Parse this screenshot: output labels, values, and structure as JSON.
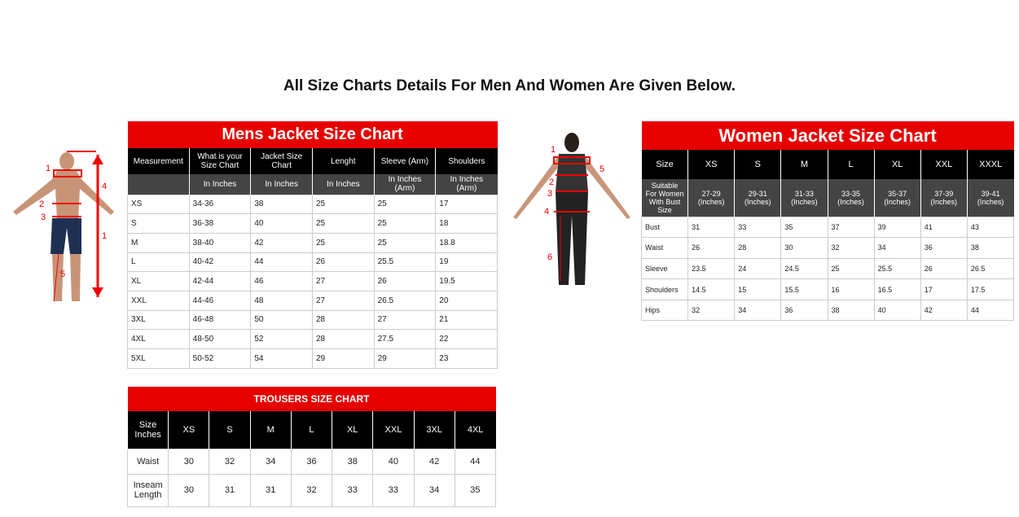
{
  "heading": "All Size Charts Details For Men And Women Are Given Below.",
  "mens_jacket": {
    "title": "Mens Jacket Size Chart",
    "header": [
      "Measurement",
      "What is your Size Chart",
      "Jacket Size Chart",
      "Lenght",
      "Sleeve (Arm)",
      "Shoulders"
    ],
    "units": [
      "In Inches",
      "In Inches",
      "In Inches",
      "In Inches (Arm)",
      "In Inches (Arm)"
    ],
    "rows": [
      [
        "XS",
        "34-36",
        "38",
        "25",
        "25",
        "17"
      ],
      [
        "S",
        "36-38",
        "40",
        "25",
        "25",
        "18"
      ],
      [
        "M",
        "38-40",
        "42",
        "25",
        "25",
        "18.8"
      ],
      [
        "L",
        "40-42",
        "44",
        "26",
        "25.5",
        "19"
      ],
      [
        "XL",
        "42-44",
        "46",
        "27",
        "26",
        "19.5"
      ],
      [
        "XXL",
        "44-46",
        "48",
        "27",
        "26.5",
        "20"
      ],
      [
        "3XL",
        "46-48",
        "50",
        "28",
        "27",
        "21"
      ],
      [
        "4XL",
        "48-50",
        "52",
        "28",
        "27.5",
        "22"
      ],
      [
        "5XL",
        "50-52",
        "54",
        "29",
        "29",
        "23"
      ]
    ]
  },
  "mens_figure": {
    "labels": [
      "1",
      "2",
      "3",
      "4",
      "1",
      "5"
    ]
  },
  "women_jacket": {
    "title": "Women Jacket Size Chart",
    "header": [
      "Size",
      "XS",
      "S",
      "M",
      "L",
      "XL",
      "XXL",
      "XXXL"
    ],
    "fit_row": [
      "Suitable For Women With Bust Size",
      "27-29 (Inches)",
      "29-31 (Inches)",
      "31-33 (Inches)",
      "33-35 (Inches)",
      "35-37 (Inches)",
      "37-39 (Inches)",
      "39-41 (Inches)"
    ],
    "rows": [
      [
        "Bust",
        "31",
        "33",
        "35",
        "37",
        "39",
        "41",
        "43"
      ],
      [
        "Waist",
        "26",
        "28",
        "30",
        "32",
        "34",
        "36",
        "38"
      ],
      [
        "Sleeve",
        "23.5",
        "24",
        "24.5",
        "25",
        "25.5",
        "26",
        "26.5"
      ],
      [
        "Shoulders",
        "14.5",
        "15",
        "15.5",
        "16",
        "16.5",
        "17",
        "17.5"
      ],
      [
        "Hips",
        "32",
        "34",
        "36",
        "38",
        "40",
        "42",
        "44"
      ]
    ]
  },
  "women_figure": {
    "labels": [
      "1",
      "2",
      "3",
      "4",
      "5",
      "6"
    ]
  },
  "trousers": {
    "title": "TROUSERS SIZE CHART",
    "header": [
      "Size Inches",
      "XS",
      "S",
      "M",
      "L",
      "XL",
      "XXL",
      "3XL",
      "4XL"
    ],
    "rows": [
      [
        "Waist",
        "30",
        "32",
        "34",
        "36",
        "38",
        "40",
        "42",
        "44"
      ],
      [
        "Inseam Length",
        "30",
        "31",
        "31",
        "32",
        "33",
        "33",
        "34",
        "35"
      ]
    ]
  }
}
